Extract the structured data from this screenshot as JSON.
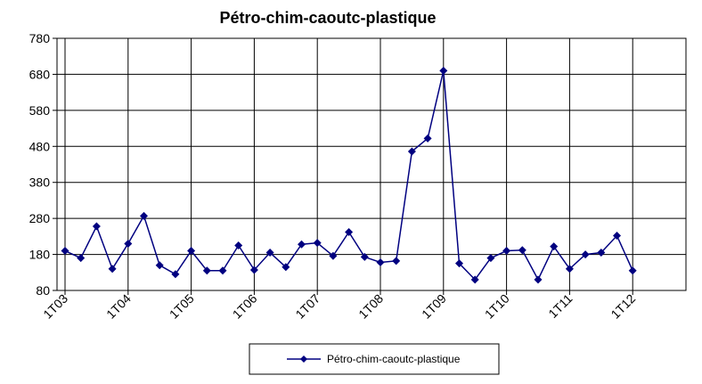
{
  "chart_data": {
    "type": "line",
    "title": "Pétro-chim-caoutc-plastique",
    "xlabel": "",
    "ylabel": "",
    "ylim": [
      80,
      780
    ],
    "yticks": [
      80,
      180,
      280,
      380,
      480,
      580,
      680,
      780
    ],
    "x_tick_labels": [
      "1T03",
      "1T04",
      "1T05",
      "1T06",
      "1T07",
      "1T08",
      "1T09",
      "1T10",
      "1T11",
      "1T12"
    ],
    "points_per_year": 4,
    "grid": {
      "horizontal": true,
      "vertical": true
    },
    "legend_position": "bottom-center",
    "colors": {
      "series": "#000080",
      "grid": "#000000",
      "background": "#ffffff"
    },
    "series": [
      {
        "name": "Pétro-chim-caoutc-plastique",
        "values": [
          190,
          170,
          258,
          140,
          210,
          287,
          150,
          125,
          190,
          135,
          135,
          205,
          137,
          185,
          145,
          208,
          212,
          176,
          242,
          173,
          158,
          162,
          466,
          502,
          690,
          155,
          110,
          170,
          190,
          192,
          110,
          202,
          140,
          180,
          185,
          232,
          135
        ]
      }
    ]
  }
}
